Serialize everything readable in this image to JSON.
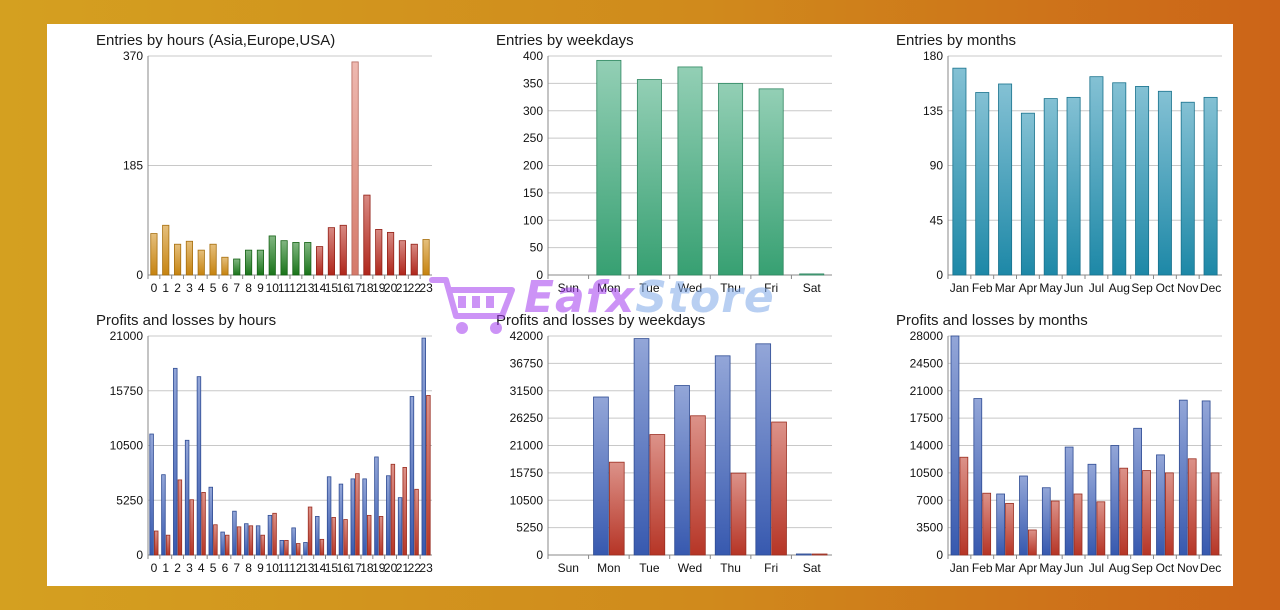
{
  "watermark": {
    "part1": "Eafx",
    "part2": "Store"
  },
  "charts": [
    {
      "id": "entries-hours",
      "title": "Entries by hours (Asia,Europe,USA)",
      "chart_data": {
        "type": "bar",
        "title": "Entries by hours (Asia,Europe,USA)",
        "categories": [
          "0",
          "1",
          "2",
          "3",
          "4",
          "5",
          "6",
          "7",
          "8",
          "9",
          "10",
          "11",
          "12",
          "13",
          "14",
          "15",
          "16",
          "17",
          "18",
          "19",
          "20",
          "21",
          "22",
          "23"
        ],
        "values": [
          70,
          84,
          52,
          57,
          42,
          52,
          30,
          27,
          42,
          42,
          66,
          58,
          55,
          55,
          48,
          80,
          84,
          360,
          135,
          77,
          72,
          58,
          52,
          60
        ],
        "bar_colors": [
          "#d08a10",
          "#d08a10",
          "#d08a10",
          "#d08a10",
          "#d08a10",
          "#d08a10",
          "#d08a10",
          "#1a7a1a",
          "#1a7a1a",
          "#1a7a1a",
          "#1a7a1a",
          "#1a7a1a",
          "#1a7a1a",
          "#1a7a1a",
          "#b8281c",
          "#b8281c",
          "#b8281c",
          "#e08070",
          "#b8281c",
          "#b8281c",
          "#b8281c",
          "#b8281c",
          "#b8281c",
          "#d08a10"
        ],
        "yticks": [
          0,
          185,
          370
        ],
        "ylim": [
          0,
          370
        ],
        "grid": true
      }
    },
    {
      "id": "entries-weekdays",
      "title": "Entries by weekdays",
      "chart_data": {
        "type": "bar",
        "title": "Entries by weekdays",
        "categories": [
          "Sun",
          "Mon",
          "Tue",
          "Wed",
          "Thu",
          "Fri",
          "Sat"
        ],
        "values": [
          0,
          392,
          357,
          380,
          350,
          340,
          2
        ],
        "bar_color": "#3aa878",
        "yticks": [
          0,
          50,
          100,
          150,
          200,
          250,
          300,
          350,
          400
        ],
        "ylim": [
          0,
          400
        ],
        "grid": true
      }
    },
    {
      "id": "entries-months",
      "title": "Entries by months",
      "chart_data": {
        "type": "bar",
        "title": "Entries by months",
        "categories": [
          "Jan",
          "Feb",
          "Mar",
          "Apr",
          "May",
          "Jun",
          "Jul",
          "Aug",
          "Sep",
          "Oct",
          "Nov",
          "Dec"
        ],
        "values": [
          170,
          150,
          157,
          133,
          145,
          146,
          163,
          158,
          155,
          151,
          142,
          146
        ],
        "bar_color": "#1f8fb0",
        "yticks": [
          0,
          45,
          90,
          135,
          180
        ],
        "ylim": [
          0,
          180
        ],
        "grid": true
      }
    },
    {
      "id": "profits-hours",
      "title": "Profits and losses by hours",
      "chart_data": {
        "type": "bar",
        "title": "Profits and losses by hours",
        "categories": [
          "0",
          "1",
          "2",
          "3",
          "4",
          "5",
          "6",
          "7",
          "8",
          "9",
          "10",
          "11",
          "12",
          "13",
          "14",
          "15",
          "16",
          "17",
          "18",
          "19",
          "20",
          "21",
          "22",
          "23"
        ],
        "series": [
          {
            "values": [
              11600,
              7700,
              17900,
              11000,
              17100,
              6500,
              2200,
              4200,
              3000,
              2800,
              3800,
              1400,
              2600,
              1200,
              3700,
              7500,
              6800,
              7300,
              7300,
              9400,
              7600,
              5500,
              15200,
              20800
            ],
            "color": "#3a5eb8"
          },
          {
            "values": [
              2300,
              1900,
              7200,
              5300,
              6000,
              2900,
              1900,
              2700,
              2800,
              1900,
              4000,
              1400,
              1100,
              4600,
              1500,
              3600,
              3400,
              7800,
              3800,
              3700,
              8700,
              8400,
              6300,
              15300
            ],
            "color": "#c03828"
          }
        ],
        "yticks": [
          0,
          5250,
          10500,
          15750,
          21000
        ],
        "ylim": [
          0,
          21000
        ],
        "grid": true
      }
    },
    {
      "id": "profits-weekdays",
      "title": "Profits and losses by weekdays",
      "chart_data": {
        "type": "bar",
        "title": "Profits and losses by weekdays",
        "categories": [
          "Sun",
          "Mon",
          "Tue",
          "Wed",
          "Thu",
          "Fri",
          "Sat"
        ],
        "series": [
          {
            "values": [
              0,
              30300,
              41500,
              32500,
              38200,
              40500,
              200
            ],
            "color": "#3a5eb8"
          },
          {
            "values": [
              0,
              17800,
              23100,
              26700,
              15700,
              25500,
              100
            ],
            "color": "#c03828"
          }
        ],
        "yticks": [
          0,
          5250,
          10500,
          15750,
          21000,
          26250,
          31500,
          36750,
          42000
        ],
        "ylim": [
          0,
          42000
        ],
        "grid": true
      }
    },
    {
      "id": "profits-months",
      "title": "Profits and losses by months",
      "chart_data": {
        "type": "bar",
        "title": "Profits and losses by months",
        "categories": [
          "Jan",
          "Feb",
          "Mar",
          "Apr",
          "May",
          "Jun",
          "Jul",
          "Aug",
          "Sep",
          "Oct",
          "Nov",
          "Dec"
        ],
        "series": [
          {
            "values": [
              28000,
              20000,
              7800,
              10100,
              8600,
              13800,
              11600,
              14000,
              16200,
              12800,
              19800,
              19700
            ],
            "color": "#3a5eb8"
          },
          {
            "values": [
              12500,
              7900,
              6600,
              3200,
              6900,
              7800,
              6800,
              11100,
              10800,
              10500,
              12300,
              10500
            ],
            "color": "#c03828"
          }
        ],
        "yticks": [
          0,
          3500,
          7000,
          10500,
          14000,
          17500,
          21000,
          24500,
          28000
        ],
        "ylim": [
          0,
          28000
        ],
        "grid": true
      }
    }
  ]
}
